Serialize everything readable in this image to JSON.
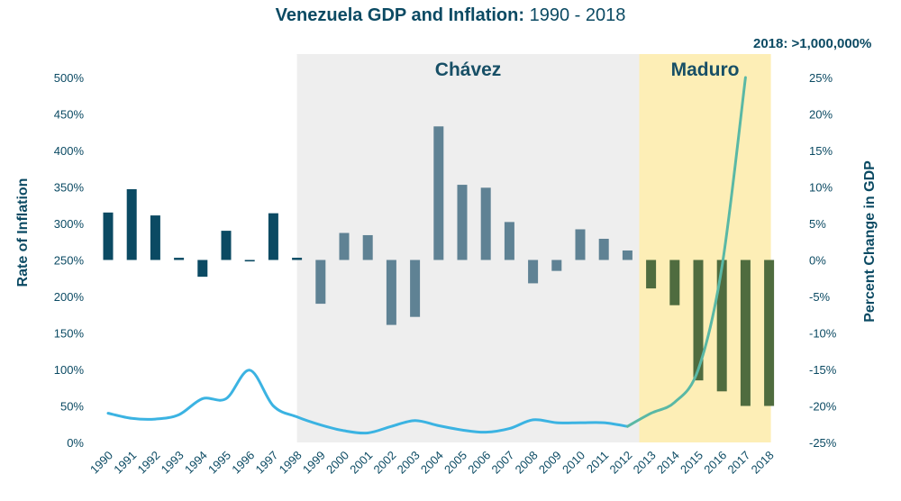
{
  "title_bold": "Venezuela GDP and Inflation:",
  "title_light": " 1990 - 2018",
  "left_axis_label": "Rate of Inflation",
  "right_axis_label": "Percent Change in GDP",
  "left_ticks": [
    "0%",
    "50%",
    "100%",
    "150%",
    "200%",
    "250%",
    "300%",
    "350%",
    "400%",
    "450%",
    "500%"
  ],
  "right_ticks": [
    "-25%",
    "-20%",
    "-15%",
    "-10%",
    "-5%",
    "0%",
    "5%",
    "10%",
    "15%",
    "20%",
    "25%"
  ],
  "eras": [
    {
      "label": "Chávez",
      "start": "1998",
      "end": "2012",
      "color": "#eeeeee"
    },
    {
      "label": "Maduro",
      "start": "2013",
      "end": "2018",
      "color": "#fdeeb6"
    }
  ],
  "annotation": "2018: >1,000,000%",
  "colors": {
    "pre_chavez_bar": "#0b4a63",
    "chavez_bar": "#5f8294",
    "maduro_bar": "#4f6c3f",
    "inflation_line": "#3bb3e2",
    "inflation_line_maduro": "#5ab8a5",
    "axis_text": "#0b4a63"
  },
  "chart_data": {
    "type": "bar+line",
    "categories": [
      "1990",
      "1991",
      "1992",
      "1993",
      "1994",
      "1995",
      "1996",
      "1997",
      "1998",
      "1999",
      "2000",
      "2001",
      "2002",
      "2003",
      "2004",
      "2005",
      "2006",
      "2007",
      "2008",
      "2009",
      "2010",
      "2011",
      "2012",
      "2013",
      "2014",
      "2015",
      "2016",
      "2017",
      "2018"
    ],
    "series": [
      {
        "type": "bar",
        "axis": "right",
        "values": [
          6.5,
          9.7,
          6.1,
          0.3,
          -2.3,
          4.0,
          -0.2,
          6.4,
          0.3,
          -6.0,
          3.7,
          3.4,
          -8.9,
          -7.8,
          18.3,
          10.3,
          9.9,
          5.2,
          -3.2,
          -1.5,
          4.2,
          2.9,
          1.3,
          -3.9,
          -6.2,
          -16.5,
          -18.0,
          -20.0,
          -20.0
        ]
      },
      {
        "type": "line",
        "axis": "left",
        "values": [
          40,
          33,
          32,
          38,
          60,
          60,
          99,
          50,
          35,
          24,
          16,
          13,
          22,
          30,
          23,
          17,
          14,
          19,
          31,
          27,
          27,
          27,
          22,
          40,
          55,
          100,
          240,
          500,
          null
        ]
      }
    ],
    "left_ylim": [
      0,
      500
    ],
    "right_ylim": [
      -25,
      25
    ],
    "ylabel_left": "Rate of Inflation",
    "ylabel_right": "Percent Change in GDP",
    "grid": false
  }
}
